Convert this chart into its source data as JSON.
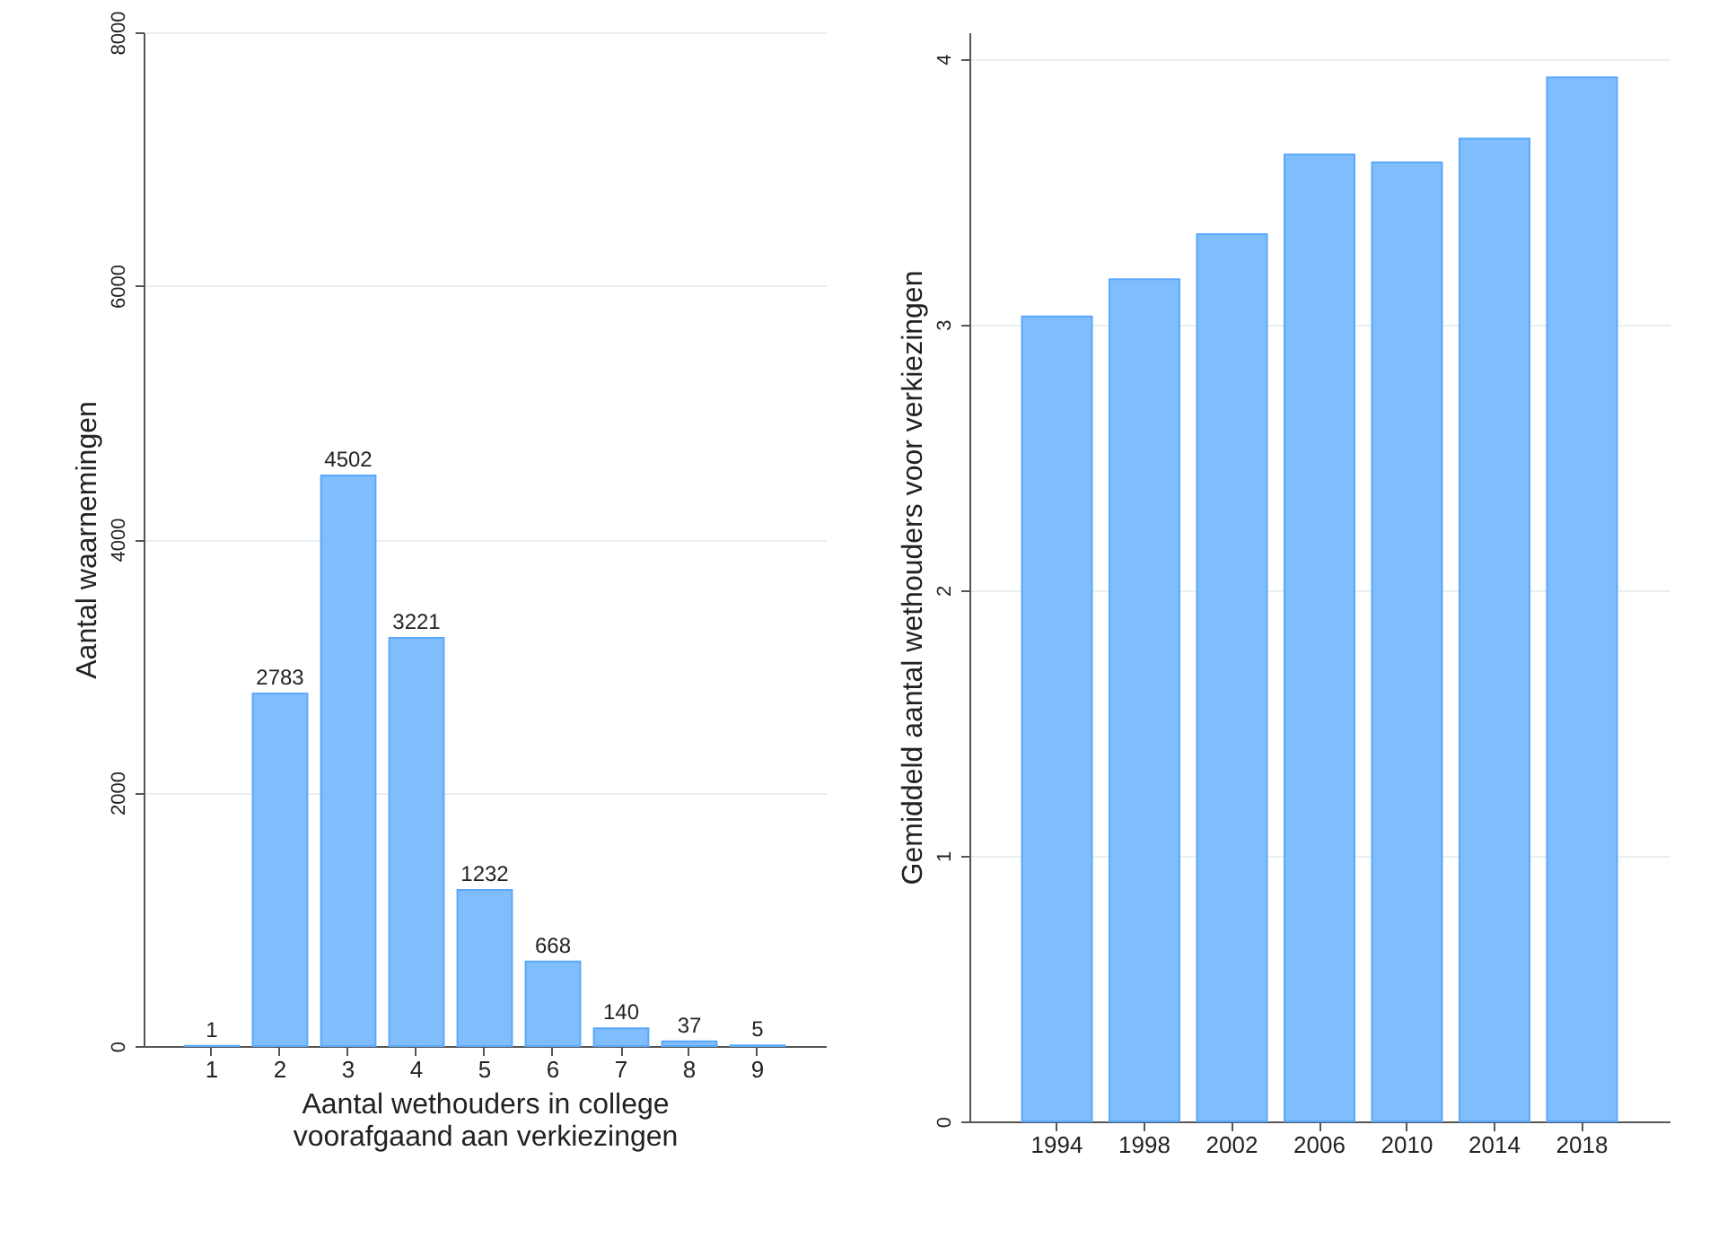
{
  "chart_data": [
    {
      "type": "bar",
      "categories": [
        "1",
        "2",
        "3",
        "4",
        "5",
        "6",
        "7",
        "8",
        "9"
      ],
      "values": [
        1,
        2783,
        4502,
        3221,
        1232,
        668,
        140,
        37,
        5
      ],
      "color": "#80bdfd",
      "data_labels": true,
      "xlabel": "Aantal wethouders in college\nvoorafgaand aan verkiezingen",
      "ylabel": "Aantal waarnemingen",
      "ylim": [
        0,
        8000
      ],
      "yticks": [
        0,
        2000,
        4000,
        6000,
        8000
      ],
      "grid": "y"
    },
    {
      "type": "bar",
      "categories": [
        "1994",
        "1998",
        "2002",
        "2006",
        "2010",
        "2014",
        "2018"
      ],
      "values": [
        3.03,
        3.17,
        3.34,
        3.64,
        3.61,
        3.7,
        3.93
      ],
      "color": "#80bdfd",
      "ylabel": "Gemiddeld aantal wethouders voor verkiezingen",
      "ylim": [
        0,
        4.1
      ],
      "yticks": [
        0,
        1,
        2,
        3,
        4
      ],
      "grid": "y"
    }
  ]
}
